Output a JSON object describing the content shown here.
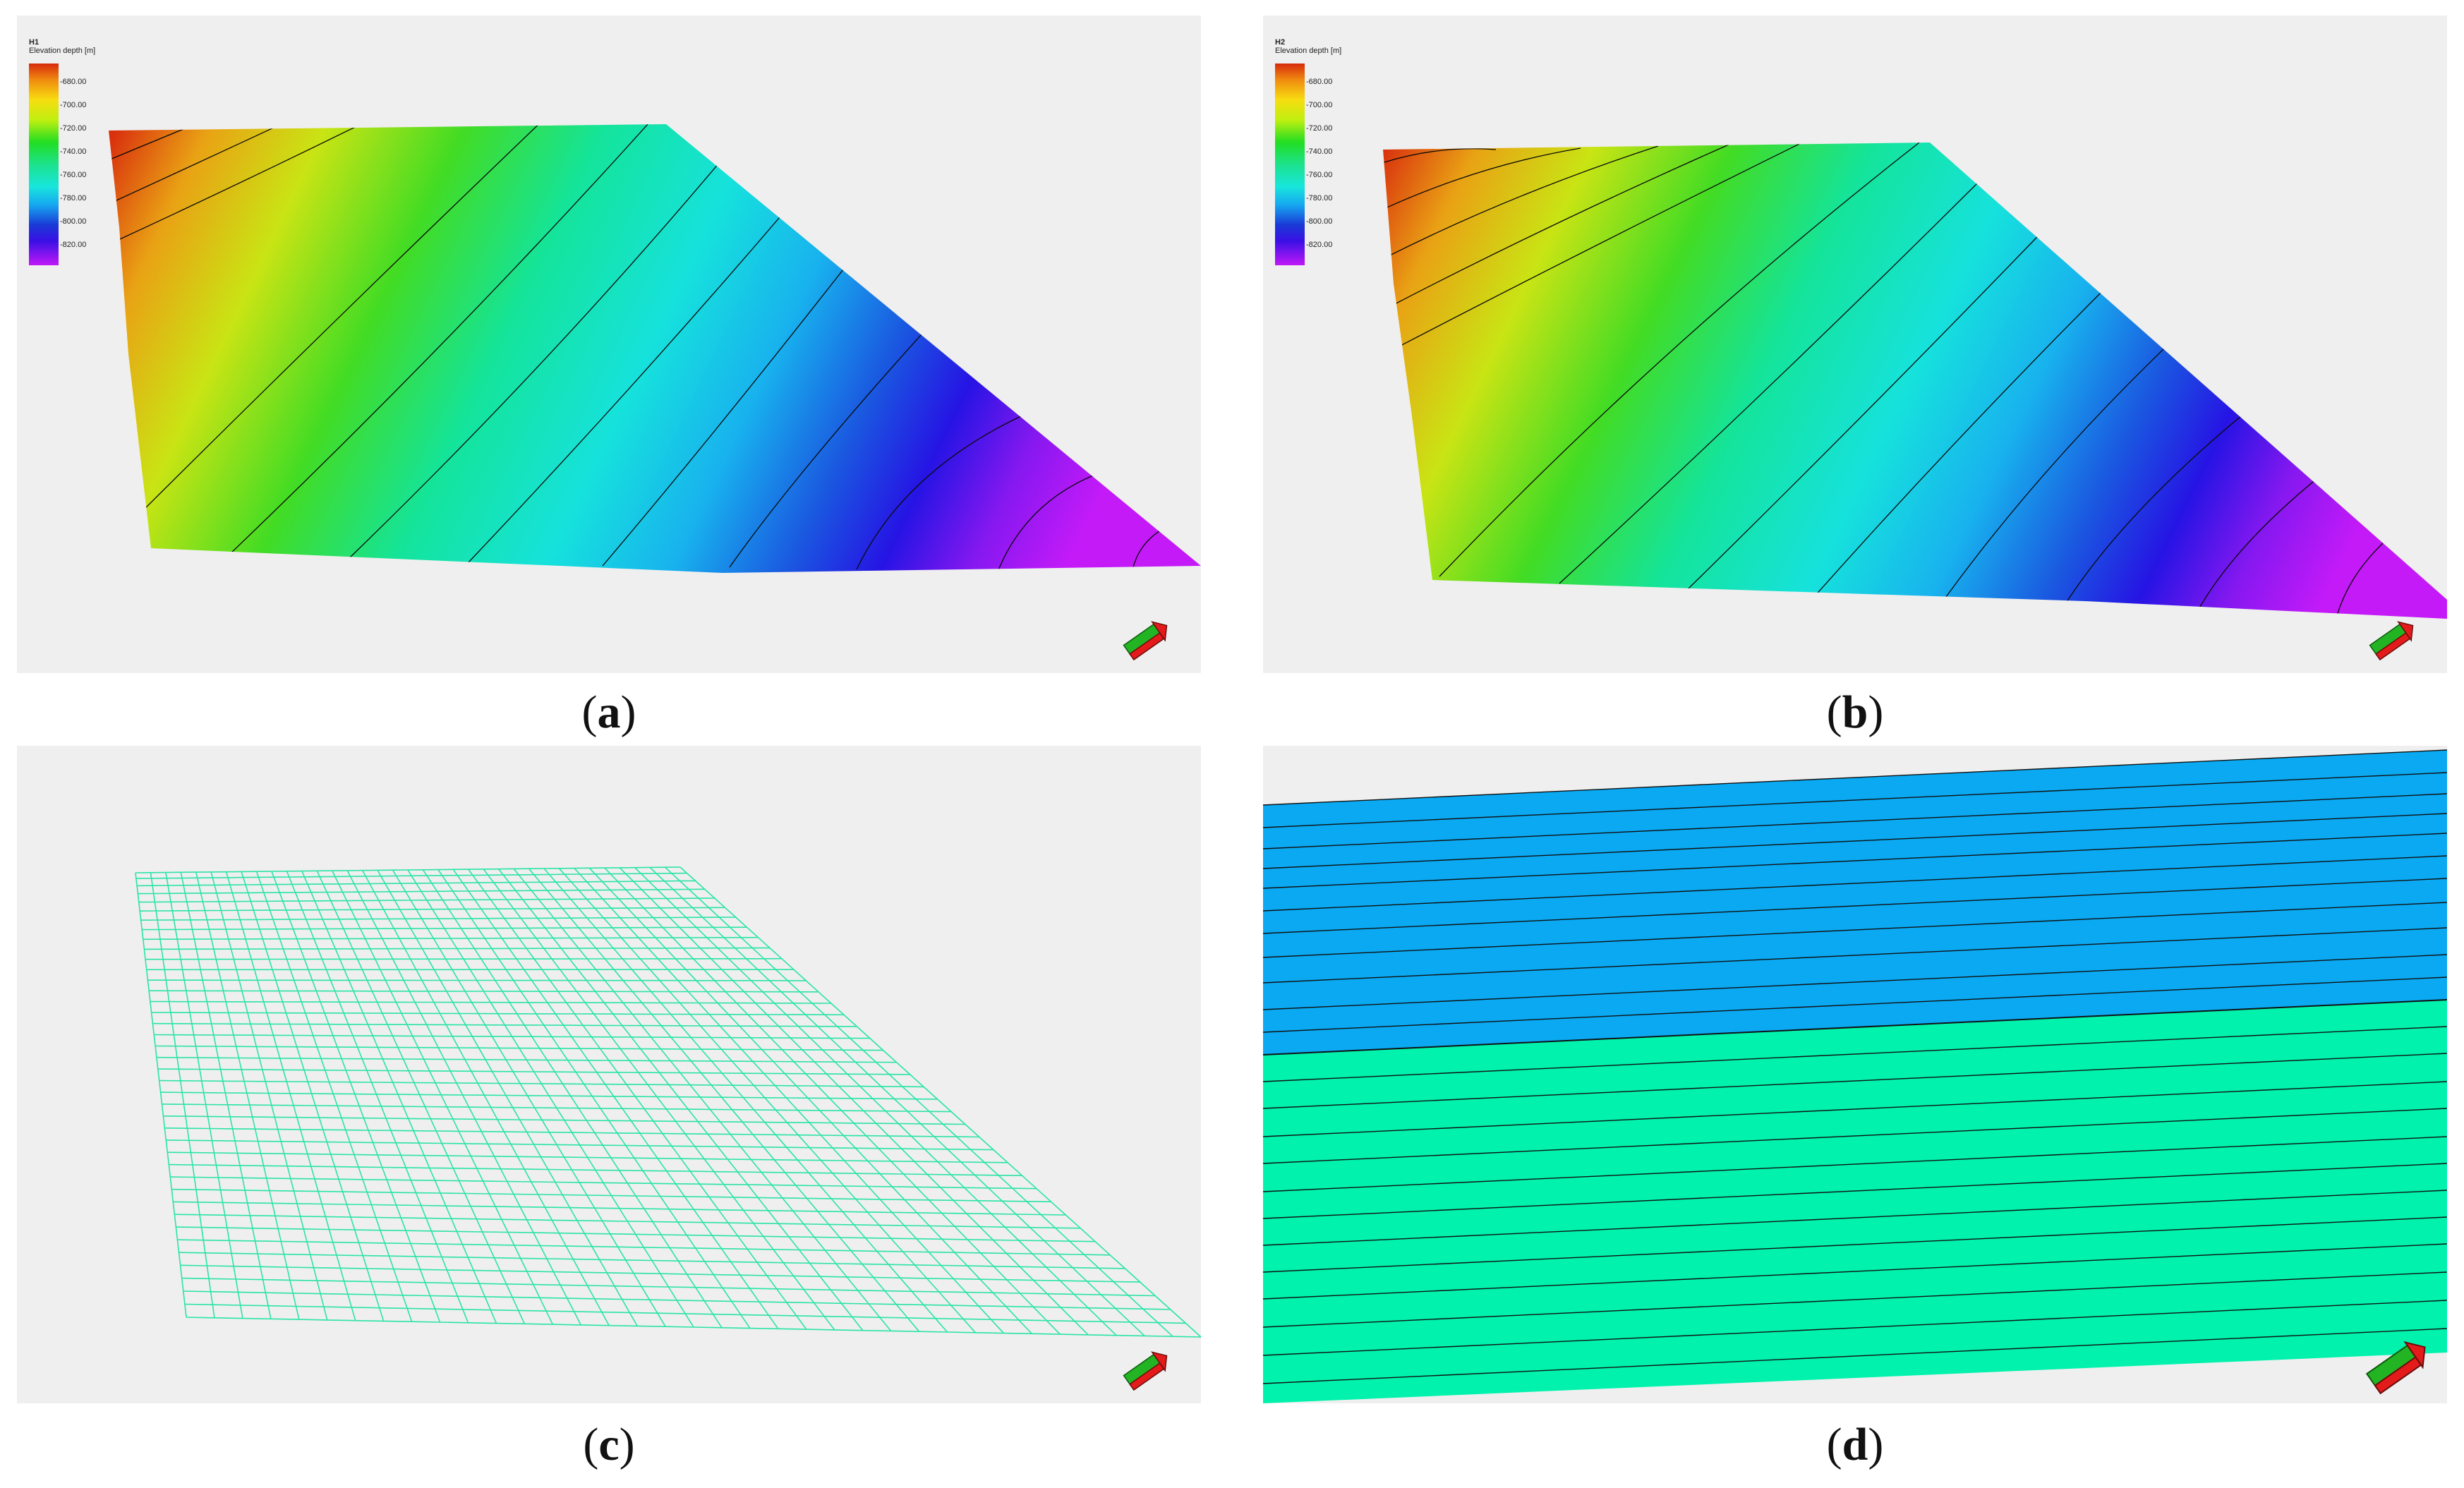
{
  "panels": [
    {
      "id": "a",
      "caption": "a",
      "kind": "surface",
      "legend_name": "H1",
      "legend_title": "Elevation depth [m]"
    },
    {
      "id": "b",
      "caption": "b",
      "kind": "surface",
      "legend_name": "H2",
      "legend_title": "Elevation depth [m]"
    },
    {
      "id": "c",
      "caption": "c",
      "kind": "grid-mesh"
    },
    {
      "id": "d",
      "caption": "d",
      "kind": "layered-section"
    }
  ],
  "legend_ticks": [
    "-680.00",
    "-700.00",
    "-720.00",
    "-740.00",
    "-760.00",
    "-780.00",
    "-800.00",
    "-820.00"
  ],
  "colors": {
    "background": "#efefef",
    "mesh": "#2be3a8",
    "layer_upper": "#0aa9f2",
    "layer_lower": "#00f2ad",
    "compass_red": "#e41b1b",
    "compass_green": "#22b422"
  },
  "icons": [
    "compass-orientation-icon"
  ]
}
